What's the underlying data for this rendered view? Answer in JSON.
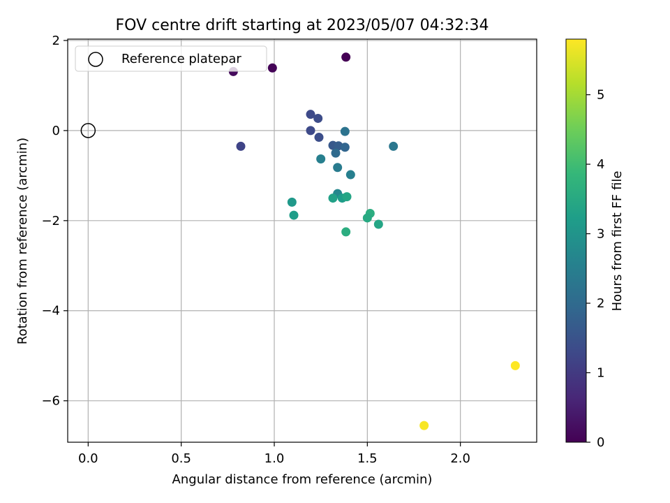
{
  "chart_data": {
    "type": "scatter",
    "title": "FOV centre drift starting at 2023/05/07 04:32:34",
    "xlabel": "Angular distance from reference (arcmin)",
    "ylabel": "Rotation from reference (arcmin)",
    "xlim": [
      -0.11,
      2.41
    ],
    "ylim": [
      -6.92,
      2.03
    ],
    "xticks": [
      0.0,
      0.5,
      1.0,
      1.5,
      2.0
    ],
    "xtick_labels": [
      "0.0",
      "0.5",
      "1.0",
      "1.5",
      "2.0"
    ],
    "yticks": [
      2,
      0,
      -2,
      -4,
      -6
    ],
    "ytick_labels": [
      "2",
      "0",
      "−2",
      "−4",
      "−6"
    ],
    "grid": true,
    "legend": {
      "placement": "top-left",
      "entries": [
        "Reference platepar"
      ]
    },
    "reference_point": {
      "x": 0.0,
      "y": 0.0,
      "marker": "open-circle",
      "label": "Reference platepar"
    },
    "colorbar": {
      "label": "Hours from first FF file",
      "colormap": "viridis",
      "range": [
        0,
        5.8
      ],
      "ticks": [
        0,
        1,
        2,
        3,
        4,
        5
      ],
      "tick_labels": [
        "0",
        "1",
        "2",
        "3",
        "4",
        "5"
      ],
      "stops": [
        "#440154",
        "#482878",
        "#3e4989",
        "#31688e",
        "#26828e",
        "#1f9e89",
        "#35b779",
        "#6ece58",
        "#b5de2b",
        "#fde725"
      ]
    },
    "points": [
      {
        "x": 1.385,
        "y": 1.63,
        "c": 0.0
      },
      {
        "x": 0.99,
        "y": 1.39,
        "c": 0.05
      },
      {
        "x": 0.78,
        "y": 1.31,
        "c": 0.15
      },
      {
        "x": 1.195,
        "y": 0.36,
        "c": 1.3
      },
      {
        "x": 1.235,
        "y": 0.27,
        "c": 1.35
      },
      {
        "x": 1.195,
        "y": 0.0,
        "c": 1.3
      },
      {
        "x": 1.24,
        "y": -0.15,
        "c": 1.4
      },
      {
        "x": 0.82,
        "y": -0.35,
        "c": 1.2
      },
      {
        "x": 1.315,
        "y": -0.33,
        "c": 1.6
      },
      {
        "x": 1.345,
        "y": -0.34,
        "c": 1.7
      },
      {
        "x": 1.38,
        "y": -0.37,
        "c": 1.9
      },
      {
        "x": 1.38,
        "y": -0.02,
        "c": 2.2
      },
      {
        "x": 1.33,
        "y": -0.5,
        "c": 2.0
      },
      {
        "x": 1.64,
        "y": -0.35,
        "c": 2.3
      },
      {
        "x": 1.25,
        "y": -0.63,
        "c": 2.5
      },
      {
        "x": 1.34,
        "y": -0.82,
        "c": 2.4
      },
      {
        "x": 1.41,
        "y": -0.98,
        "c": 2.5
      },
      {
        "x": 1.34,
        "y": -1.4,
        "c": 2.7
      },
      {
        "x": 1.315,
        "y": -1.5,
        "c": 3.3
      },
      {
        "x": 1.365,
        "y": -1.5,
        "c": 3.2
      },
      {
        "x": 1.39,
        "y": -1.47,
        "c": 3.4
      },
      {
        "x": 1.095,
        "y": -1.59,
        "c": 3.1
      },
      {
        "x": 1.105,
        "y": -1.88,
        "c": 3.2
      },
      {
        "x": 1.515,
        "y": -1.84,
        "c": 3.6
      },
      {
        "x": 1.5,
        "y": -1.94,
        "c": 3.5
      },
      {
        "x": 1.56,
        "y": -2.08,
        "c": 3.4
      },
      {
        "x": 1.385,
        "y": -2.25,
        "c": 3.6
      },
      {
        "x": 2.295,
        "y": -5.22,
        "c": 5.8
      },
      {
        "x": 1.805,
        "y": -6.55,
        "c": 5.75
      }
    ]
  }
}
